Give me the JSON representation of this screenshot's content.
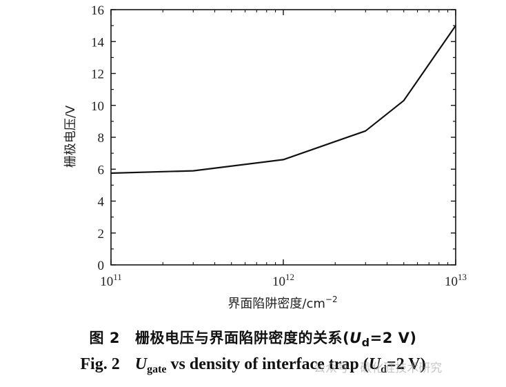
{
  "chart_data": {
    "type": "line",
    "title": "",
    "xlabel": "界面陷阱密度/cm",
    "xlabel_sup": "−2",
    "ylabel": "栅极电压/V",
    "xscale": "log",
    "xlim": [
      100000000000.0,
      10000000000000.0
    ],
    "ylim": [
      0,
      16
    ],
    "xticks": [
      {
        "value": 100000000000.0,
        "base": "10",
        "exp": "11"
      },
      {
        "value": 1000000000000.0,
        "base": "10",
        "exp": "12"
      },
      {
        "value": 10000000000000.0,
        "base": "10",
        "exp": "13"
      }
    ],
    "yticks": [
      "0",
      "2",
      "4",
      "6",
      "8",
      "10",
      "12",
      "14",
      "16"
    ],
    "series": [
      {
        "x": [
          100000000000.0,
          300000000000.0,
          1000000000000.0,
          3000000000000.0,
          5000000000000.0,
          10000000000000.0
        ],
        "y": [
          5.75,
          5.9,
          6.6,
          8.4,
          10.3,
          15.0
        ]
      }
    ],
    "grid": false,
    "color": "#111111"
  },
  "caption": {
    "cn_label": "图 2",
    "cn_text": "栅极电压与界面陷阱密度的关系",
    "cn_cond_open": "(",
    "cn_cond_var": "U",
    "cn_cond_sub": "d",
    "cn_cond_rest": "=2 V)",
    "en_label": "Fig. 2",
    "en_var": "U",
    "en_sub": "gate",
    "en_text": " vs density of interface trap (",
    "en_cond_var": "U",
    "en_cond_sub": "d",
    "en_cond_rest": "=2 V)"
  },
  "watermark": "公众号 · 碳化硅技术研究"
}
